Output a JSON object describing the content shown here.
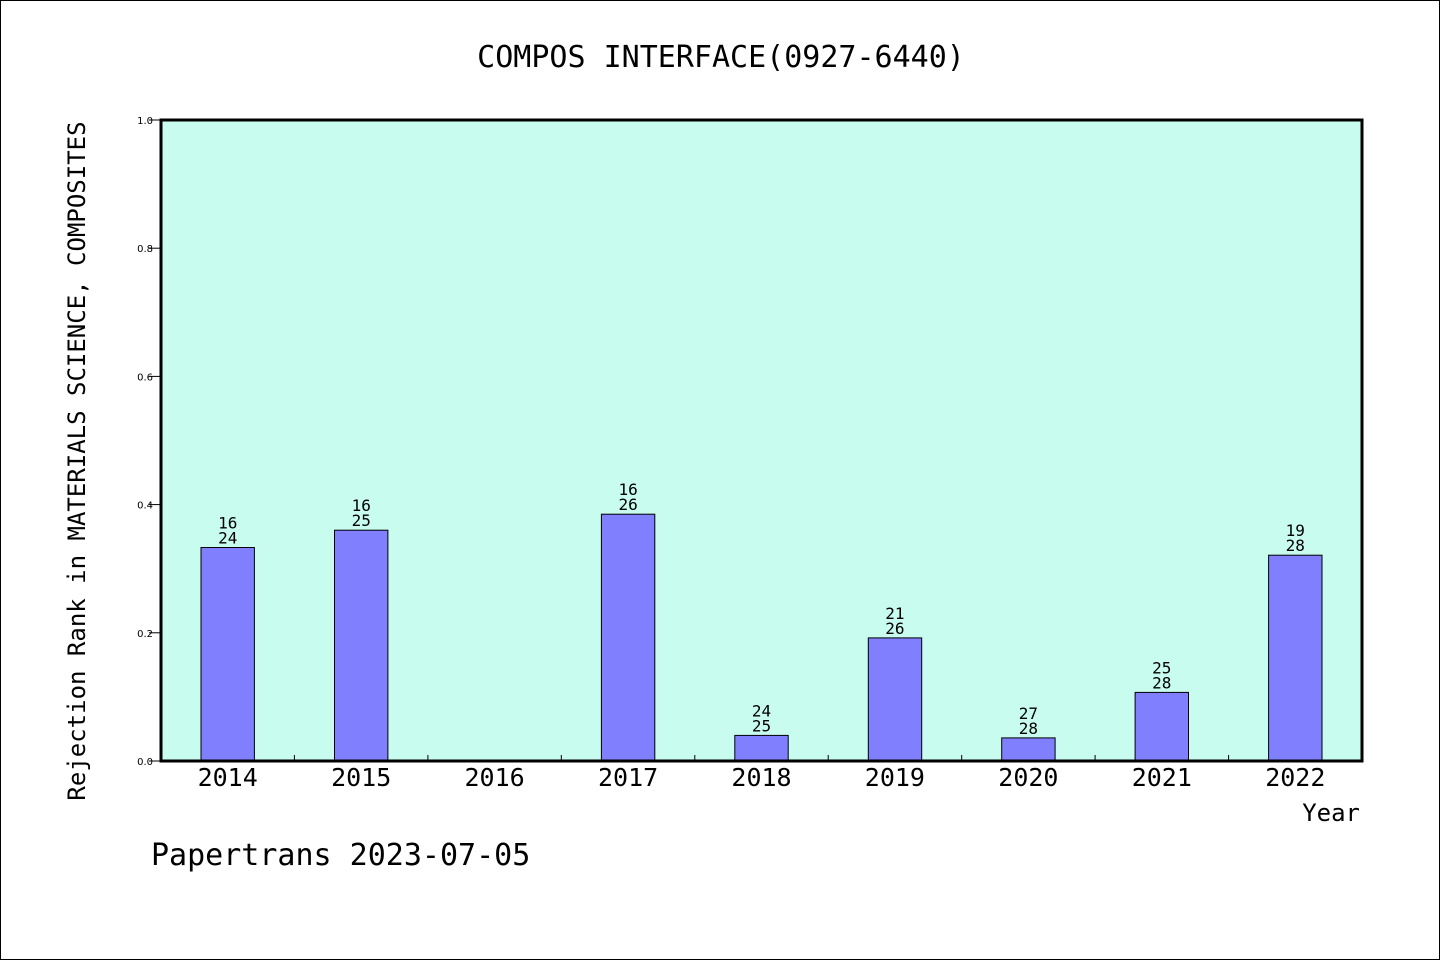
{
  "chart_data": {
    "type": "bar",
    "title": "COMPOS INTERFACE(0927-6440)",
    "ylabel": "Rejection Rank in MATERIALS SCIENCE, COMPOSITES",
    "xlabel": "Year",
    "footer": "Papertrans 2023-07-05",
    "ylim": [
      0,
      1.0
    ],
    "yticks": [
      "0.0",
      "0.2",
      "0.4",
      "0.6",
      "0.8",
      "1.0"
    ],
    "categories": [
      "2014",
      "2015",
      "2016",
      "2017",
      "2018",
      "2019",
      "2020",
      "2021",
      "2022"
    ],
    "values": [
      0.333,
      0.36,
      null,
      0.385,
      0.04,
      0.192,
      0.036,
      0.107,
      0.321
    ],
    "bar_labels": [
      [
        "16",
        "24"
      ],
      [
        "16",
        "25"
      ],
      null,
      [
        "16",
        "26"
      ],
      [
        "24",
        "25"
      ],
      [
        "21",
        "26"
      ],
      [
        "27",
        "28"
      ],
      [
        "25",
        "28"
      ],
      [
        "19",
        "28"
      ]
    ],
    "grid": false,
    "colors": {
      "plot_background": "#c8fcee",
      "bar_fill": "#8080ff",
      "bar_stroke": "#000000",
      "axis": "#000000"
    }
  }
}
